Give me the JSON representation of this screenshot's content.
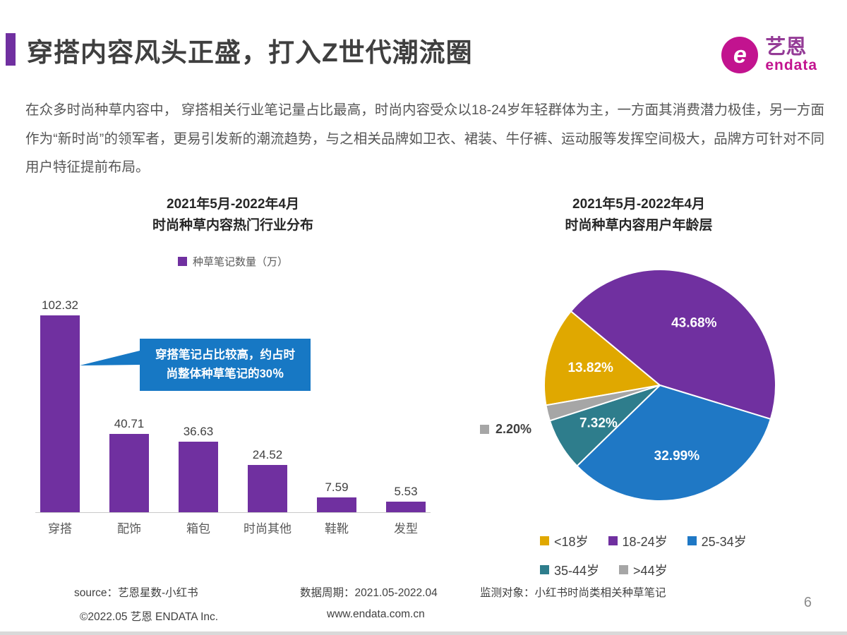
{
  "page": {
    "title": "穿搭内容风头正盛，打入Z世代潮流圈",
    "page_number": "6"
  },
  "colors": {
    "accent_purple": "#7030A0",
    "brand_magenta": "#C2138F",
    "brand_purple_text": "#943B96",
    "callout_blue": "#1778C4"
  },
  "logo": {
    "mark": "e",
    "brand_cn": "艺恩",
    "brand_en": "endata"
  },
  "intro": "在众多时尚种草内容中， 穿搭相关行业笔记量占比最高，时尚内容受众以18-24岁年轻群体为主，一方面其消费潜力极佳，另一方面作为“新时尚”的领军者，更易引发新的潮流趋势，与之相关品牌如卫衣、裙装、牛仔裤、运动服等发挥空间极大，品牌方可针对不同用户特征提前布局。",
  "chart_data": [
    {
      "type": "bar",
      "title_line1": "2021年5月-2022年4月",
      "title_line2": "时尚种草内容热门行业分布",
      "legend": "种草笔记数量（万）",
      "categories": [
        "穿搭",
        "配饰",
        "箱包",
        "时尚其他",
        "鞋靴",
        "发型"
      ],
      "values": [
        102.32,
        40.71,
        36.63,
        24.52,
        7.59,
        5.53
      ],
      "bar_color": "#7030A0",
      "ylim": [
        0,
        110
      ],
      "grid": false,
      "annotation": "穿搭笔记占比较高，约占时尚整体种草笔记的30％",
      "annotation_color": "#1778C4"
    },
    {
      "type": "pie",
      "title_line1": "2021年5月-2022年4月",
      "title_line2": "时尚种草内容用户年龄层",
      "start_angle": 260,
      "slices": [
        {
          "label": "<18岁",
          "value": 13.82,
          "display": "13.82%",
          "color": "#E0A800",
          "label_inside": true
        },
        {
          "label": "18-24岁",
          "value": 43.68,
          "display": "43.68%",
          "color": "#7030A0",
          "label_inside": true
        },
        {
          "label": "25-34岁",
          "value": 32.99,
          "display": "32.99%",
          "color": "#1F78C5",
          "label_inside": true
        },
        {
          "label": "35-44岁",
          "value": 7.32,
          "display": "7.32%",
          "color": "#2E7D8C",
          "label_inside": true
        },
        {
          "label": ">44岁",
          "value": 2.2,
          "display": "2.20%",
          "color": "#A6A6A6",
          "label_inside": false
        }
      ],
      "legend_rows": [
        [
          "<18岁",
          "18-24岁",
          "25-34岁"
        ],
        [
          "35-44岁",
          ">44岁"
        ]
      ],
      "legend_position": "bottom"
    }
  ],
  "footer": {
    "source": "source：艺恩星数-小红书",
    "period": "数据周期：2021.05-2022.04",
    "target": "监测对象：小红书时尚类相关种草笔记",
    "copyright": "©2022.05 艺恩 ENDATA Inc.",
    "website": "www.endata.com.cn"
  }
}
